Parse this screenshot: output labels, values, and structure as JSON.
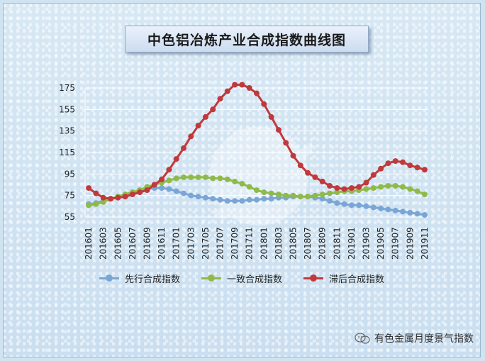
{
  "title": "中色铝冶炼产业合成指数曲线图",
  "watermark": "有色金属月度景气指数",
  "chart_data": {
    "type": "line",
    "title": "中色铝冶炼产业合成指数曲线图",
    "xlabel": "",
    "ylabel": "",
    "ylim": [
      55,
      175
    ],
    "yticks": [
      55,
      75,
      95,
      115,
      135,
      155,
      175
    ],
    "grid": true,
    "legend_position": "bottom",
    "x_tick_labels": [
      "201601",
      "201603",
      "201605",
      "201607",
      "201609",
      "201611",
      "201701",
      "201703",
      "201705",
      "201707",
      "201709",
      "201711",
      "201801",
      "201803",
      "201805",
      "201807",
      "201809",
      "201811",
      "201901",
      "201903",
      "201905",
      "201907",
      "201909",
      "201911"
    ],
    "categories": [
      "201601",
      "201602",
      "201603",
      "201604",
      "201605",
      "201606",
      "201607",
      "201608",
      "201609",
      "201610",
      "201611",
      "201612",
      "201701",
      "201702",
      "201703",
      "201704",
      "201705",
      "201706",
      "201707",
      "201708",
      "201709",
      "201710",
      "201711",
      "201712",
      "201801",
      "201802",
      "201803",
      "201804",
      "201805",
      "201806",
      "201807",
      "201808",
      "201809",
      "201810",
      "201811",
      "201812",
      "201901",
      "201902",
      "201903",
      "201904",
      "201905",
      "201906",
      "201907",
      "201908",
      "201909",
      "201910",
      "201911"
    ],
    "series": [
      {
        "name": "先行合成指数",
        "color": "#7aa6d6",
        "values": [
          67,
          68,
          70,
          72,
          74,
          76,
          78,
          80,
          81,
          82,
          82,
          81,
          79,
          77,
          75,
          74,
          73,
          72,
          71,
          70,
          70,
          70,
          71,
          71,
          72,
          72,
          73,
          73,
          74,
          74,
          74,
          73,
          72,
          70,
          68,
          67,
          66,
          66,
          65,
          64,
          63,
          62,
          61,
          60,
          59,
          58,
          57
        ]
      },
      {
        "name": "一致合成指数",
        "color": "#8fba4a",
        "values": [
          66,
          67,
          69,
          72,
          74,
          76,
          78,
          80,
          83,
          85,
          87,
          89,
          91,
          92,
          92,
          92,
          92,
          91,
          91,
          90,
          88,
          86,
          83,
          80,
          78,
          77,
          76,
          75,
          75,
          74,
          74,
          75,
          76,
          77,
          78,
          79,
          79,
          80,
          81,
          82,
          83,
          84,
          84,
          83,
          81,
          79,
          76
        ]
      },
      {
        "name": "滞后合成指数",
        "color": "#c0393b",
        "values": [
          82,
          77,
          73,
          72,
          73,
          74,
          76,
          78,
          80,
          85,
          90,
          99,
          109,
          119,
          130,
          140,
          148,
          155,
          165,
          172,
          178,
          178,
          175,
          170,
          160,
          148,
          136,
          124,
          112,
          103,
          96,
          92,
          88,
          84,
          82,
          81,
          82,
          83,
          87,
          94,
          100,
          105,
          107,
          106,
          103,
          101,
          99
        ]
      }
    ]
  }
}
